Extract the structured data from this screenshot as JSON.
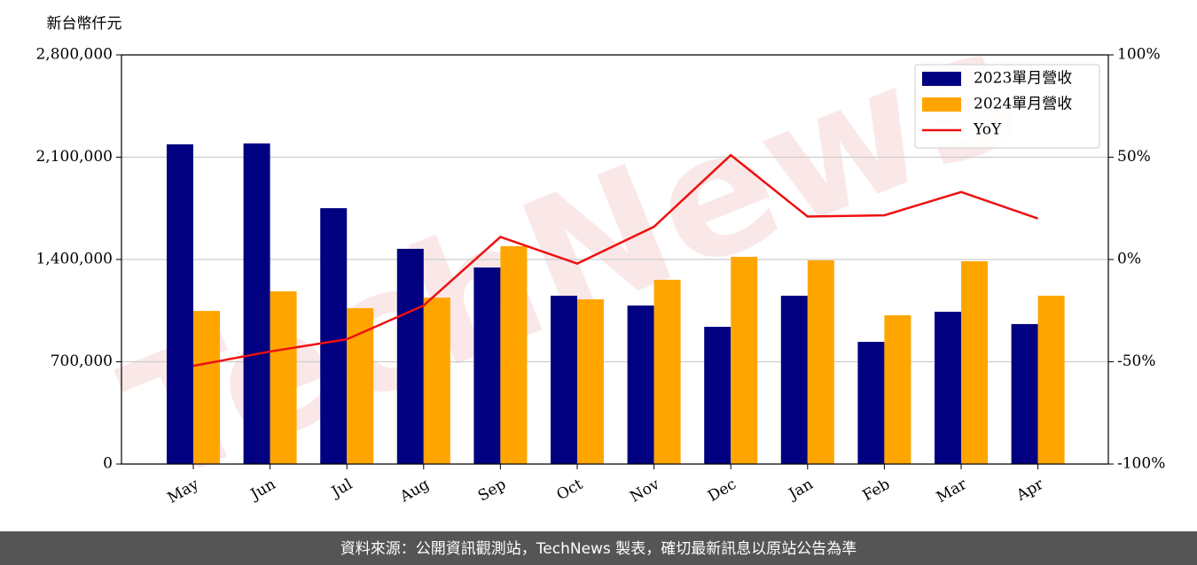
{
  "chart_data": {
    "type": "bar",
    "y_label": "新台幣仟元",
    "watermark": "TechNews",
    "footer": "資料來源：公開資訊觀測站，TechNews 製表，確切最新訊息以原站公告為準",
    "categories": [
      "May",
      "Jun",
      "Jul",
      "Aug",
      "Sep",
      "Oct",
      "Nov",
      "Dec",
      "Jan",
      "Feb",
      "Mar",
      "Apr"
    ],
    "series": [
      {
        "name": "2023單月營收",
        "color": "#000080",
        "values": [
          2188000,
          2194000,
          1751000,
          1473000,
          1345000,
          1152000,
          1085000,
          939000,
          1152000,
          836000,
          1042000,
          958000
        ]
      },
      {
        "name": "2024單月營收",
        "color": "#ffa500",
        "values": [
          1048000,
          1182000,
          1067000,
          1139000,
          1491000,
          1127000,
          1261000,
          1418000,
          1394000,
          1018000,
          1388000,
          1152000
        ]
      },
      {
        "name": "YoY",
        "color": "#ee1111",
        "type": "line",
        "axis": "y2",
        "values": [
          -52,
          -45,
          -39,
          -22.5,
          11,
          -2,
          16,
          51,
          21,
          21.6,
          33,
          20
        ]
      }
    ],
    "ylim": [
      0,
      2800000
    ],
    "yticks": [
      {
        "value": 0,
        "label": "0"
      },
      {
        "value": 700000,
        "label": "700,000"
      },
      {
        "value": 1400000,
        "label": "1,400,000"
      },
      {
        "value": 2100000,
        "label": "2,100,000"
      },
      {
        "value": 2800000,
        "label": "2,800,000"
      }
    ],
    "y2lim": [
      -100,
      100
    ],
    "y2ticks": [
      {
        "value": -100,
        "label": "-100%"
      },
      {
        "value": -50,
        "label": "-50%"
      },
      {
        "value": 0,
        "label": "0%"
      },
      {
        "value": 50,
        "label": "50%"
      },
      {
        "value": 100,
        "label": "100%"
      }
    ],
    "grid": true,
    "legend": "upper right"
  }
}
